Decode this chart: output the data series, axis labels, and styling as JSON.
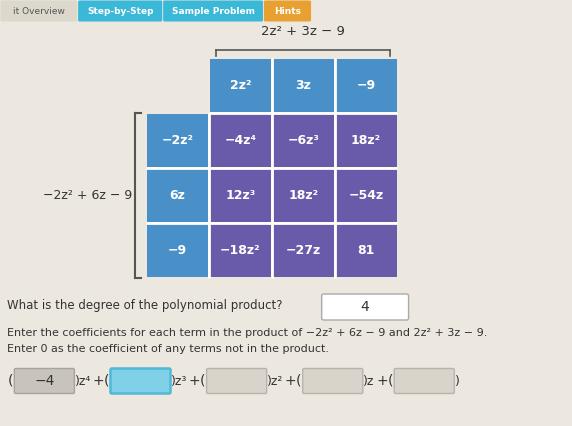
{
  "bg_color": "#ece8e0",
  "tab_bg": "#ddd8cc",
  "header_poly": "2z² + 3z − 9",
  "side_poly": "−2z² + 6z − 9",
  "grid_blue_color": "#4a90c8",
  "grid_purple_color": "#6a5aaa",
  "grid_cells": [
    [
      "2z²",
      "3z",
      "−9"
    ],
    [
      "−2z²",
      "−4z⁴",
      "−6z³",
      "18z²"
    ],
    [
      "6z",
      "12z³",
      "18z²",
      "−54z"
    ],
    [
      "−9",
      "−18z²",
      "−27z",
      "81"
    ]
  ],
  "degree_label": "What is the degree of the polynomial product?",
  "degree_value": "4",
  "instruction_line1": "Enter the coefficients for each term in the product of −2z² + 6z − 9 and 2z² + 3z − 9.",
  "instruction_line2": "Enter 0 as the coefficient of any terms not in the product.",
  "coeff_val": "−4",
  "text_white": "#ffffff",
  "text_dark": "#333333",
  "active_box_color": "#80d0e8",
  "active_box_edge": "#50b8d8",
  "inactive_box_color": "#d8d4cc",
  "inactive_box_edge": "#b8b4aa",
  "filled_box_color": "#c8c4bc",
  "filled_box_edge": "#a8a49c"
}
